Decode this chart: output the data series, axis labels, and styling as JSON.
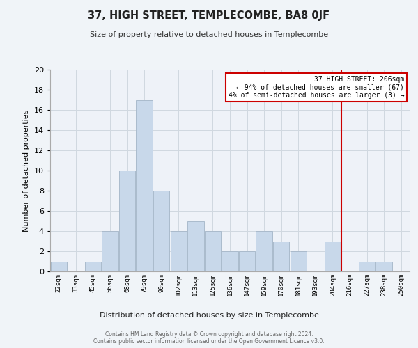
{
  "title": "37, HIGH STREET, TEMPLECOMBE, BA8 0JF",
  "subtitle": "Size of property relative to detached houses in Templecombe",
  "xlabel": "Distribution of detached houses by size in Templecombe",
  "ylabel": "Number of detached properties",
  "footer_line1": "Contains HM Land Registry data © Crown copyright and database right 2024.",
  "footer_line2": "Contains public sector information licensed under the Open Government Licence v3.0.",
  "bin_labels": [
    "22sqm",
    "33sqm",
    "45sqm",
    "56sqm",
    "68sqm",
    "79sqm",
    "90sqm",
    "102sqm",
    "113sqm",
    "125sqm",
    "136sqm",
    "147sqm",
    "159sqm",
    "170sqm",
    "181sqm",
    "193sqm",
    "204sqm",
    "216sqm",
    "227sqm",
    "238sqm",
    "250sqm"
  ],
  "bar_values": [
    1,
    0,
    1,
    4,
    10,
    17,
    8,
    4,
    5,
    4,
    2,
    2,
    4,
    3,
    2,
    0,
    3,
    0,
    1,
    1,
    0
  ],
  "bar_color": "#c8d8ea",
  "bar_edge_color": "#aabbcc",
  "highlight_bin_index": 16,
  "highlight_color": "#cc0000",
  "ylim": [
    0,
    20
  ],
  "yticks": [
    0,
    2,
    4,
    6,
    8,
    10,
    12,
    14,
    16,
    18,
    20
  ],
  "annotation_title": "37 HIGH STREET: 206sqm",
  "annotation_line1": "← 94% of detached houses are smaller (67)",
  "annotation_line2": "4% of semi-detached houses are larger (3) →",
  "annotation_box_color": "#ffffff",
  "annotation_box_edge": "#cc0000",
  "grid_color": "#d0d8e0",
  "background_color": "#f0f4f8",
  "plot_bg_color": "#eef2f8"
}
